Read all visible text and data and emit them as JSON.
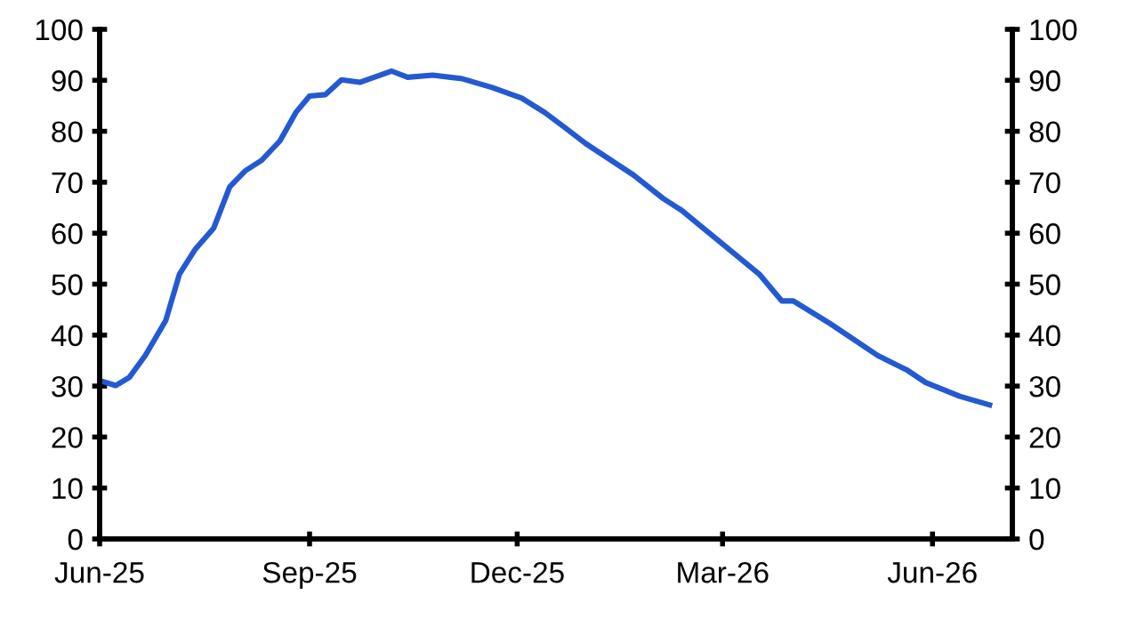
{
  "chart_data": {
    "type": "line",
    "x": [
      "2025-06-01",
      "2025-06-08",
      "2025-06-14",
      "2025-06-21",
      "2025-06-30",
      "2025-07-06",
      "2025-07-13",
      "2025-07-21",
      "2025-07-28",
      "2025-08-04",
      "2025-08-11",
      "2025-08-19",
      "2025-08-26",
      "2025-09-01",
      "2025-09-08",
      "2025-09-15",
      "2025-09-23",
      "2025-10-07",
      "2025-10-14",
      "2025-10-25",
      "2025-11-07",
      "2025-11-20",
      "2025-12-03",
      "2025-12-13",
      "2025-12-22",
      "2025-12-31",
      "2026-01-21",
      "2026-02-03",
      "2026-02-11",
      "2026-02-27",
      "2026-03-17",
      "2026-03-27",
      "2026-04-01",
      "2026-04-17",
      "2026-05-08",
      "2026-05-21",
      "2026-05-29",
      "2026-06-13",
      "2026-06-26"
    ],
    "series": [
      {
        "color": "#2359d1",
        "values": [
          31.1,
          30.1,
          31.7,
          36.0,
          42.9,
          52.0,
          56.9,
          61.0,
          69.1,
          72.3,
          74.3,
          78.1,
          83.7,
          86.9,
          87.2,
          90.1,
          89.6,
          91.8,
          90.6,
          91.0,
          90.3,
          88.6,
          86.5,
          83.7,
          80.7,
          77.6,
          71.4,
          66.8,
          64.5,
          58.6,
          52.0,
          46.7,
          46.7,
          42.3,
          36.0,
          33.1,
          30.7,
          28.0,
          26.3
        ]
      }
    ],
    "xlim": [
      "2025-06-01",
      "2026-07-06"
    ],
    "xticks": [
      {
        "value": "2025-06-01",
        "label": "Jun-25"
      },
      {
        "value": "2025-09-01",
        "label": "Sep-25"
      },
      {
        "value": "2025-12-01",
        "label": "Dec-25"
      },
      {
        "value": "2026-03-01",
        "label": "Mar-26"
      },
      {
        "value": "2026-06-01",
        "label": "Jun-26"
      }
    ],
    "ylim": [
      0,
      100
    ],
    "yticks": [
      0,
      10,
      20,
      30,
      40,
      50,
      60,
      70,
      80,
      90,
      100
    ],
    "y2lim": [
      0,
      100
    ],
    "y2ticks": [
      0,
      10,
      20,
      30,
      40,
      50,
      60,
      70,
      80,
      90,
      100
    ],
    "grid": false,
    "legend": false,
    "marker": "none",
    "line_style": "solid"
  }
}
